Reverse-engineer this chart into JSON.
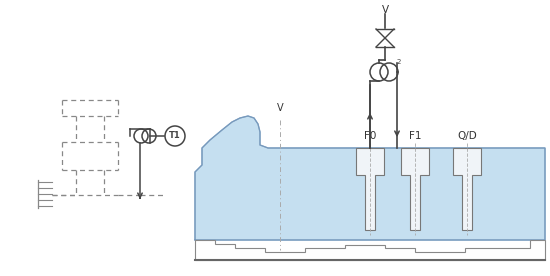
{
  "bg_color": "#ffffff",
  "blue_fill": "#c5dff0",
  "line_color": "#666666",
  "dark_line": "#444444",
  "dashed_color": "#888888",
  "label_color": "#333333",
  "figsize": [
    5.5,
    2.76
  ],
  "dpi": 100,
  "labels": {
    "V_top": "V",
    "V_left": "V",
    "F0": "F0",
    "F1": "F1",
    "QD": "Q/D",
    "T1": "T1"
  }
}
